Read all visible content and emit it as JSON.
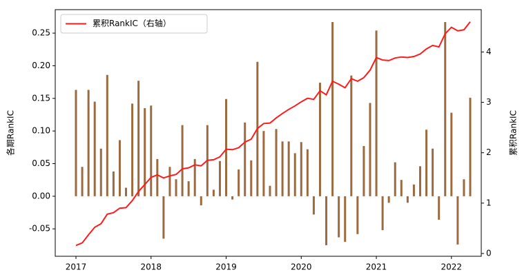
{
  "chart_data": {
    "type": "bar_line",
    "categories": [
      "2017",
      null,
      null,
      null,
      null,
      null,
      null,
      null,
      null,
      null,
      null,
      null,
      "2018",
      null,
      null,
      null,
      null,
      null,
      null,
      null,
      null,
      null,
      null,
      null,
      "2019",
      null,
      null,
      null,
      null,
      null,
      null,
      null,
      null,
      null,
      null,
      null,
      "2020",
      null,
      null,
      null,
      null,
      null,
      null,
      null,
      null,
      null,
      null,
      null,
      "2021",
      null,
      null,
      null,
      null,
      null,
      null,
      null,
      null,
      null,
      null,
      null,
      "2022",
      null,
      null,
      null
    ],
    "series": [
      {
        "type": "bar",
        "color": "#9b6a3f",
        "values": [
          0.163,
          0.045,
          0.163,
          0.145,
          0.073,
          0.186,
          0.038,
          0.086,
          0.013,
          0.142,
          0.177,
          0.135,
          0.139,
          0.057,
          -0.065,
          0.045,
          0.026,
          0.109,
          0.023,
          0.057,
          -0.014,
          0.109,
          0.01,
          0.054,
          0.149,
          -0.005,
          0.041,
          0.113,
          0.055,
          0.206,
          0.1,
          0.016,
          0.103,
          0.084,
          0.084,
          0.066,
          0.083,
          0.072,
          -0.028,
          0.174,
          -0.075,
          0.267,
          -0.063,
          -0.07,
          0.185,
          -0.058,
          0.077,
          0.143,
          0.254,
          -0.052,
          -0.01,
          0.052,
          0.025,
          -0.01,
          0.018,
          0.046,
          0.102,
          0.073,
          -0.036,
          0.267,
          0.128,
          -0.074,
          0.026,
          0.151
        ]
      },
      {
        "type": "line",
        "name": "累积RankIC（右轴）",
        "axis": "y2",
        "color": "#ff1a1a",
        "values": [
          0.16,
          0.21,
          0.37,
          0.52,
          0.59,
          0.78,
          0.81,
          0.9,
          0.91,
          1.05,
          1.23,
          1.37,
          1.51,
          1.56,
          1.5,
          1.54,
          1.57,
          1.68,
          1.7,
          1.76,
          1.74,
          1.85,
          1.86,
          1.92,
          2.07,
          2.06,
          2.1,
          2.21,
          2.27,
          2.48,
          2.58,
          2.59,
          2.69,
          2.78,
          2.86,
          2.93,
          3.01,
          3.08,
          3.06,
          3.23,
          3.15,
          3.42,
          3.36,
          3.29,
          3.47,
          3.42,
          3.49,
          3.64,
          3.89,
          3.84,
          3.83,
          3.88,
          3.9,
          3.89,
          3.91,
          3.96,
          4.06,
          4.13,
          4.1,
          4.36,
          4.49,
          4.42,
          4.44,
          4.6
        ]
      }
    ],
    "y_label": "各期RankIC",
    "y2_label": "累积RankIC",
    "ylim": [
      -0.092,
      0.286
    ],
    "yticks": [
      {
        "value": -0.05,
        "label": "-0.05"
      },
      {
        "value": 0,
        "label": "0.00"
      },
      {
        "value": 0.05,
        "label": "0.05"
      },
      {
        "value": 0.1,
        "label": "0.10"
      },
      {
        "value": 0.15,
        "label": "0.15"
      },
      {
        "value": 0.2,
        "label": "0.20"
      },
      {
        "value": 0.25,
        "label": "0.25"
      }
    ],
    "y2lim": [
      -0.055,
      4.84
    ],
    "y2ticks": [
      0,
      1,
      2,
      3,
      4
    ],
    "legend": "upper left",
    "grid": false
  }
}
